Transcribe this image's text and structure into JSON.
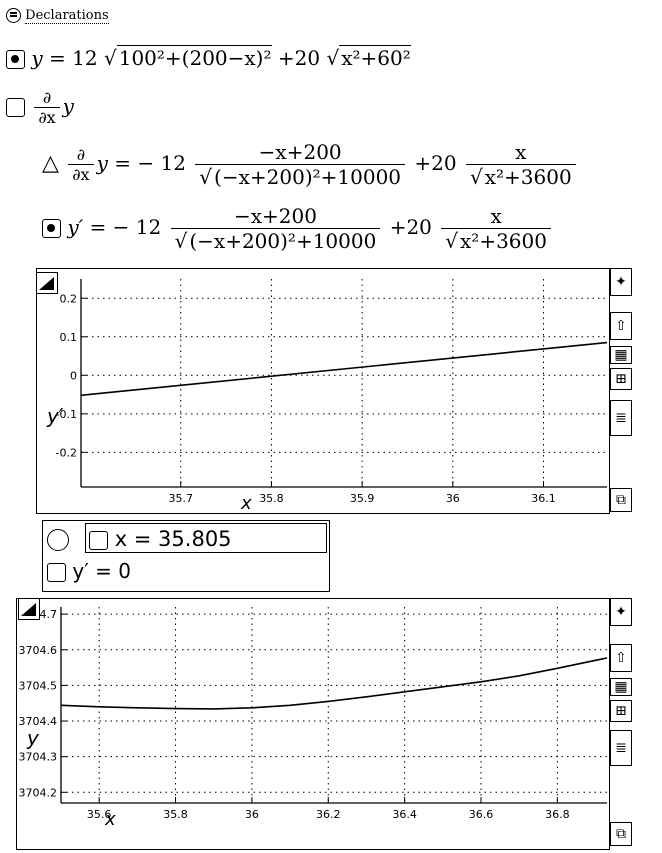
{
  "declarations": {
    "label": "Declarations"
  },
  "eq1": {
    "lhs": "y",
    "coef1": "12",
    "inner1": "100²+(200−x)²",
    "coef2": "20",
    "inner2": "x²+60²"
  },
  "eq2": {
    "d": "∂",
    "dx": "∂x",
    "var": "y"
  },
  "eq3": {
    "lhs_var": "y",
    "equals": "= − 12",
    "num1": "−x+200",
    "den1": "(−x+200)²+10000",
    "plus": "+20",
    "num2": "x",
    "den2": "x²+3600"
  },
  "eq4": {
    "lhs": "y′",
    "equals": "= − 12",
    "num1": "−x+200",
    "den1": "(−x+200)²+10000",
    "plus": "+20",
    "num2": "x",
    "den2": "x²+3600"
  },
  "result": {
    "x_line": "x = 35.805",
    "y_line": "y′ = 0"
  },
  "chart_data": [
    {
      "type": "line",
      "xlabel": "x",
      "ylabel": "y′",
      "x_ticks": [
        "35.7",
        "35.8",
        "35.9",
        "36",
        "36.1"
      ],
      "y_ticks": [
        "0.2",
        "0.1",
        "0",
        "-0.1",
        "-0.2"
      ],
      "xlim": [
        35.59,
        36.17
      ],
      "ylim": [
        -0.29,
        0.25
      ],
      "grid": true,
      "series": [
        {
          "x": [
            35.59,
            36.17
          ],
          "y": [
            -0.052,
            0.085
          ]
        }
      ]
    },
    {
      "type": "line",
      "xlabel": "x",
      "ylabel": "y",
      "x_ticks": [
        "35.6",
        "35.8",
        "36",
        "36.2",
        "36.4",
        "36.6",
        "36.8"
      ],
      "y_ticks": [
        "3704.7",
        "3704.6",
        "3704.5",
        "3704.4",
        "3704.3",
        "3704.2"
      ],
      "xlim": [
        35.5,
        36.93
      ],
      "ylim": [
        3704.17,
        3704.72
      ],
      "grid": true,
      "series": [
        {
          "x": [
            35.5,
            35.6,
            35.7,
            35.8,
            35.9,
            36.0,
            36.1,
            36.2,
            36.3,
            36.4,
            36.5,
            36.6,
            36.7,
            36.8,
            36.93
          ],
          "y": [
            3704.444,
            3704.44,
            3704.437,
            3704.435,
            3704.434,
            3704.437,
            3704.444,
            3704.455,
            3704.468,
            3704.482,
            3704.496,
            3704.51,
            3704.527,
            3704.548,
            3704.577
          ]
        }
      ]
    }
  ]
}
